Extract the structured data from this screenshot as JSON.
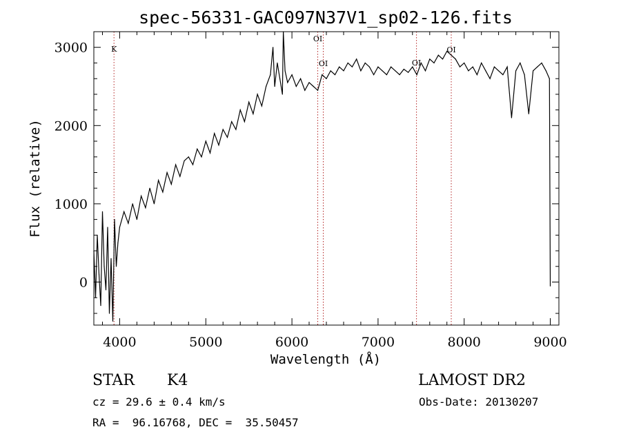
{
  "chart_data": {
    "type": "line",
    "title": "spec-56331-GAC097N37V1_sp02-126.fits",
    "xlabel": "Wavelength (Å)",
    "ylabel": "Flux (relative)",
    "xlim": [
      3700,
      9100
    ],
    "ylim": [
      -550,
      3200
    ],
    "xticks": [
      4000,
      5000,
      6000,
      7000,
      8000,
      9000
    ],
    "yticks": [
      0,
      1000,
      2000,
      3000
    ],
    "series": [
      {
        "x": [
          3700,
          3720,
          3740,
          3760,
          3780,
          3800,
          3820,
          3840,
          3860,
          3880,
          3900,
          3920,
          3940,
          3960,
          3980,
          4000,
          4050,
          4100,
          4150,
          4200,
          4250,
          4300,
          4350,
          4400,
          4450,
          4500,
          4550,
          4600,
          4650,
          4700,
          4750,
          4800,
          4850,
          4900,
          4950,
          5000,
          5050,
          5100,
          5150,
          5200,
          5250,
          5300,
          5350,
          5400,
          5450,
          5500,
          5550,
          5600,
          5650,
          5700,
          5750,
          5780,
          5800,
          5830,
          5860,
          5890,
          5900,
          5920,
          5950,
          6000,
          6050,
          6100,
          6150,
          6200,
          6250,
          6300,
          6350,
          6400,
          6450,
          6500,
          6550,
          6600,
          6650,
          6700,
          6750,
          6800,
          6850,
          6900,
          6950,
          7000,
          7050,
          7100,
          7150,
          7200,
          7250,
          7300,
          7350,
          7400,
          7450,
          7500,
          7550,
          7600,
          7650,
          7700,
          7750,
          7800,
          7850,
          7900,
          7950,
          8000,
          8050,
          8100,
          8150,
          8200,
          8250,
          8300,
          8350,
          8400,
          8450,
          8500,
          8550,
          8600,
          8650,
          8700,
          8750,
          8800,
          8850,
          8900,
          8950,
          8990,
          9000
        ],
        "y": [
          400,
          -200,
          600,
          100,
          -300,
          900,
          200,
          -100,
          700,
          -400,
          300,
          -500,
          800,
          200,
          500,
          700,
          900,
          750,
          1000,
          800,
          1100,
          950,
          1200,
          1000,
          1300,
          1150,
          1400,
          1250,
          1500,
          1350,
          1550,
          1600,
          1500,
          1700,
          1600,
          1800,
          1650,
          1900,
          1750,
          1950,
          1850,
          2050,
          1950,
          2200,
          2050,
          2300,
          2150,
          2400,
          2250,
          2500,
          2650,
          3000,
          2500,
          2800,
          2600,
          2400,
          3200,
          2700,
          2550,
          2650,
          2500,
          2600,
          2450,
          2550,
          2500,
          2450,
          2650,
          2600,
          2700,
          2650,
          2750,
          2700,
          2800,
          2750,
          2850,
          2700,
          2800,
          2750,
          2650,
          2750,
          2700,
          2650,
          2750,
          2700,
          2650,
          2720,
          2680,
          2750,
          2650,
          2800,
          2700,
          2850,
          2800,
          2900,
          2850,
          2950,
          2900,
          2850,
          2750,
          2800,
          2700,
          2750,
          2650,
          2800,
          2700,
          2600,
          2750,
          2700,
          2650,
          2750,
          2100,
          2700,
          2800,
          2650,
          2150,
          2700,
          2750,
          2800,
          2700,
          2600,
          -50
        ]
      }
    ],
    "line_markers": [
      {
        "label": "K",
        "x": 3934
      },
      {
        "label": "OI",
        "x": 6300
      },
      {
        "label": "OI",
        "x": 6364
      },
      {
        "label": "OI",
        "x": 7446
      },
      {
        "label": "OI",
        "x": 7850
      }
    ],
    "grid": false
  },
  "info": {
    "class": "STAR",
    "subclass": "K4",
    "survey": "LAMOST DR2",
    "cz": "cz = 29.6 ± 0.4 km/s",
    "obs_date": "Obs-Date: 20130207",
    "radec": "RA =  96.16768, DEC =  35.50457"
  },
  "colors": {
    "line": "#000000",
    "marker": "#b22222",
    "background": "#ffffff"
  }
}
